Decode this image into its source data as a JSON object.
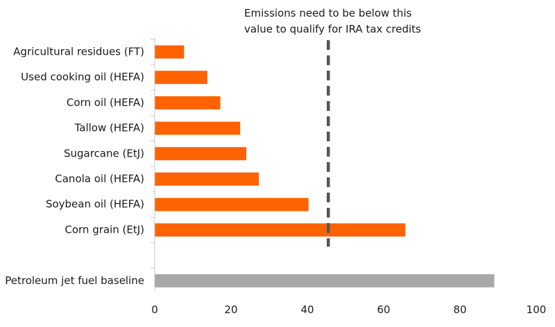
{
  "chart_data": {
    "type": "bar",
    "orientation": "horizontal",
    "categories": [
      "Agricultural residues (FT)",
      "Used cooking oil (HEFA)",
      "Corn oil (HEFA)",
      "Tallow (HEFA)",
      "Sugarcane (EtJ)",
      "Canola oil (HEFA)",
      "Soybean oil (HEFA)",
      "Corn grain (EtJ)",
      "",
      "Petroleum jet fuel baseline"
    ],
    "values": [
      7.7,
      13.8,
      17.2,
      22.4,
      24.0,
      27.3,
      40.3,
      65.7,
      null,
      89.0
    ],
    "bar_colors": [
      "#ff6200",
      "#ff6200",
      "#ff6200",
      "#ff6200",
      "#ff6200",
      "#ff6200",
      "#ff6200",
      "#ff6200",
      "#ff6200",
      "#a8a8a8"
    ],
    "xlim": [
      0,
      100
    ],
    "xticks": [
      0,
      20,
      40,
      60,
      80,
      100
    ],
    "title": "",
    "xlabel": "",
    "ylabel": "",
    "grid": false,
    "legend": "none",
    "reference_line": {
      "value": 45.5,
      "style": "dashed",
      "color": "#555555",
      "annotation_lines": [
        "Emissions need to be below this",
        "value to qualify for IRA tax credits"
      ]
    }
  }
}
